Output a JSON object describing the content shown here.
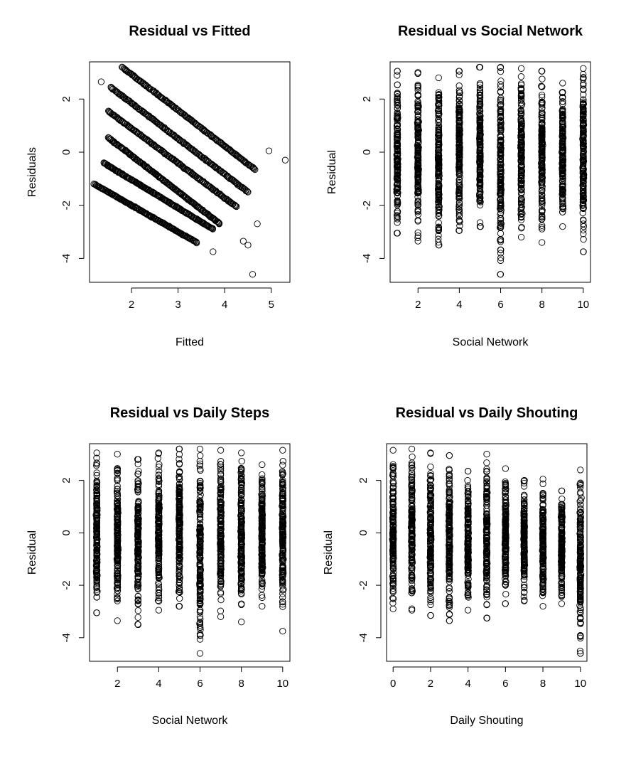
{
  "chart_data": [
    {
      "type": "scatter",
      "title": "Residual vs Fitted",
      "xlabel": "Fitted",
      "ylabel": "Residuals",
      "xlim": [
        1.1,
        5.4
      ],
      "ylim": [
        -4.9,
        3.4
      ],
      "xticks": [
        2,
        3,
        4,
        5
      ],
      "yticks": [
        -4,
        -2,
        0,
        2
      ],
      "grid": false,
      "marker": "open-circle",
      "bands": [
        {
          "x_start": 1.8,
          "y_start": 3.2,
          "x_end": 4.65,
          "y_end": -0.65
        },
        {
          "x_start": 1.55,
          "y_start": 2.45,
          "x_end": 4.5,
          "y_end": -1.5
        },
        {
          "x_start": 1.5,
          "y_start": 1.55,
          "x_end": 4.25,
          "y_end": -2.05
        },
        {
          "x_start": 1.5,
          "y_start": 0.55,
          "x_end": 3.9,
          "y_end": -2.7
        },
        {
          "x_start": 1.4,
          "y_start": -0.4,
          "x_end": 3.75,
          "y_end": -2.9
        },
        {
          "x_start": 1.2,
          "y_start": -1.2,
          "x_end": 3.4,
          "y_end": -3.4
        }
      ],
      "outliers": [
        {
          "x": 1.35,
          "y": 2.65
        },
        {
          "x": 4.95,
          "y": 0.05
        },
        {
          "x": 5.3,
          "y": -0.3
        },
        {
          "x": 4.7,
          "y": -2.7
        },
        {
          "x": 4.4,
          "y": -3.35
        },
        {
          "x": 4.5,
          "y": -3.5
        },
        {
          "x": 3.75,
          "y": -3.75
        },
        {
          "x": 4.6,
          "y": -4.6
        }
      ]
    },
    {
      "type": "scatter",
      "title": "Residual vs Social Network",
      "xlabel": "Social Network",
      "ylabel": "Residual",
      "xlim": [
        0.65,
        10.35
      ],
      "ylim": [
        -4.9,
        3.4
      ],
      "xticks": [
        2,
        4,
        6,
        8,
        10
      ],
      "yticks": [
        -4,
        -2,
        0,
        2
      ],
      "grid": false,
      "marker": "open-circle",
      "columns": [
        {
          "x": 1,
          "ymin": -3.05,
          "ymax": 3.05
        },
        {
          "x": 2,
          "ymin": -3.35,
          "ymax": 3.0
        },
        {
          "x": 3,
          "ymin": -3.5,
          "ymax": 2.8
        },
        {
          "x": 4,
          "ymin": -2.95,
          "ymax": 3.05
        },
        {
          "x": 5,
          "ymin": -2.8,
          "ymax": 3.2
        },
        {
          "x": 6,
          "ymin": -4.6,
          "ymax": 3.2
        },
        {
          "x": 7,
          "ymin": -3.2,
          "ymax": 3.15
        },
        {
          "x": 8,
          "ymin": -3.4,
          "ymax": 3.05
        },
        {
          "x": 9,
          "ymin": -2.8,
          "ymax": 2.6
        },
        {
          "x": 10,
          "ymin": -3.75,
          "ymax": 3.15
        }
      ]
    },
    {
      "type": "scatter",
      "title": "Residual vs Daily Steps",
      "xlabel": "Social Network",
      "ylabel": "Residual",
      "xlim": [
        0.65,
        10.35
      ],
      "ylim": [
        -4.9,
        3.4
      ],
      "xticks": [
        2,
        4,
        6,
        8,
        10
      ],
      "yticks": [
        -4,
        -2,
        0,
        2
      ],
      "grid": false,
      "marker": "open-circle",
      "columns": [
        {
          "x": 1,
          "ymin": -3.05,
          "ymax": 3.05
        },
        {
          "x": 2,
          "ymin": -3.35,
          "ymax": 3.0
        },
        {
          "x": 3,
          "ymin": -3.5,
          "ymax": 2.8
        },
        {
          "x": 4,
          "ymin": -2.95,
          "ymax": 3.05
        },
        {
          "x": 5,
          "ymin": -2.8,
          "ymax": 3.2
        },
        {
          "x": 6,
          "ymin": -4.6,
          "ymax": 3.2
        },
        {
          "x": 7,
          "ymin": -3.2,
          "ymax": 3.15
        },
        {
          "x": 8,
          "ymin": -3.4,
          "ymax": 3.05
        },
        {
          "x": 9,
          "ymin": -2.8,
          "ymax": 2.6
        },
        {
          "x": 10,
          "ymin": -3.75,
          "ymax": 3.15
        }
      ]
    },
    {
      "type": "scatter",
      "title": "Residual vs Daily Shouting",
      "xlabel": "Daily Shouting",
      "ylabel": "Residual",
      "xlim": [
        -0.35,
        10.35
      ],
      "ylim": [
        -4.9,
        3.4
      ],
      "xticks": [
        0,
        2,
        4,
        6,
        8,
        10
      ],
      "yticks": [
        -4,
        -2,
        0,
        2
      ],
      "grid": false,
      "marker": "open-circle",
      "columns": [
        {
          "x": 0,
          "ymin": -2.9,
          "ymax": 3.15
        },
        {
          "x": 1,
          "ymin": -2.95,
          "ymax": 3.2
        },
        {
          "x": 2,
          "ymin": -3.15,
          "ymax": 3.05
        },
        {
          "x": 3,
          "ymin": -3.35,
          "ymax": 2.95
        },
        {
          "x": 4,
          "ymin": -2.95,
          "ymax": 2.35
        },
        {
          "x": 5,
          "ymin": -3.25,
          "ymax": 3.0
        },
        {
          "x": 6,
          "ymin": -2.7,
          "ymax": 2.45
        },
        {
          "x": 7,
          "ymin": -2.6,
          "ymax": 2.0
        },
        {
          "x": 8,
          "ymin": -2.8,
          "ymax": 2.05
        },
        {
          "x": 9,
          "ymin": -2.7,
          "ymax": 1.6
        },
        {
          "x": 10,
          "ymin": -4.6,
          "ymax": 2.4
        }
      ]
    }
  ]
}
